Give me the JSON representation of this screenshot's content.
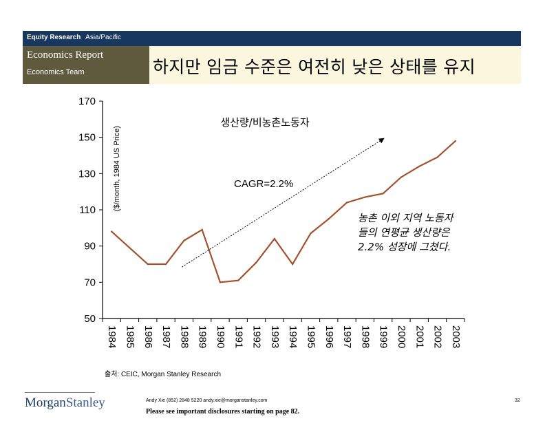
{
  "header": {
    "division": "Equity Research",
    "region": "Asia/Pacific",
    "report_type": "Economics Report",
    "team": "Economics Team",
    "slide_title": "하지만 임금 수준은 여전히 낮은 상태를 유지"
  },
  "colors": {
    "header_band": "#17375e",
    "left_panel": "#5f5a3e",
    "title_box": "#fbf7de",
    "series_line": "#a0522d"
  },
  "chart_data": {
    "type": "line",
    "title": "생산량/비농촌노동자",
    "ylabel": "($/month, 1984 US Price)",
    "xlabel": "",
    "ylim": [
      50,
      170
    ],
    "yticks": [
      50,
      70,
      90,
      110,
      130,
      150,
      170
    ],
    "categories": [
      "1984",
      "1985",
      "1986",
      "1987",
      "1988",
      "1989",
      "1990",
      "1991",
      "1992",
      "1993",
      "1994",
      "1995",
      "1996",
      "1997",
      "1998",
      "1999",
      "2000",
      "2001",
      "2002",
      "2003"
    ],
    "series": [
      {
        "values": [
          98,
          89,
          80,
          80,
          93,
          99,
          70,
          71,
          81,
          94,
          80,
          97,
          105,
          114,
          117,
          119,
          128,
          134,
          139,
          148
        ]
      }
    ],
    "trend_label": "CAGR=2.2%",
    "trend_from": {
      "x": "1988",
      "y": 86
    },
    "trend_to": {
      "x": "2000",
      "y": 146
    },
    "annotation": "농촌 이외 지역 노동자 들의 연평균 생산량은 2.2% 성장에 그쳤다.",
    "annotation_lines": [
      "농촌 이외 지역 노동자",
      "들의 연평균 생산량은",
      "2.2% 성장에 그쳤다."
    ],
    "grid": false,
    "legend": "none"
  },
  "footer": {
    "source": "출처: CEIC, Morgan Stanley Research",
    "brand_part1": "Morgan",
    "brand_part2": "Stanley",
    "contact": "Andy Xie (852) 2848 5220 andy.xie@morganstanley.com",
    "disclosure": "Please see important disclosures starting on page 82.",
    "page_number": "32"
  }
}
